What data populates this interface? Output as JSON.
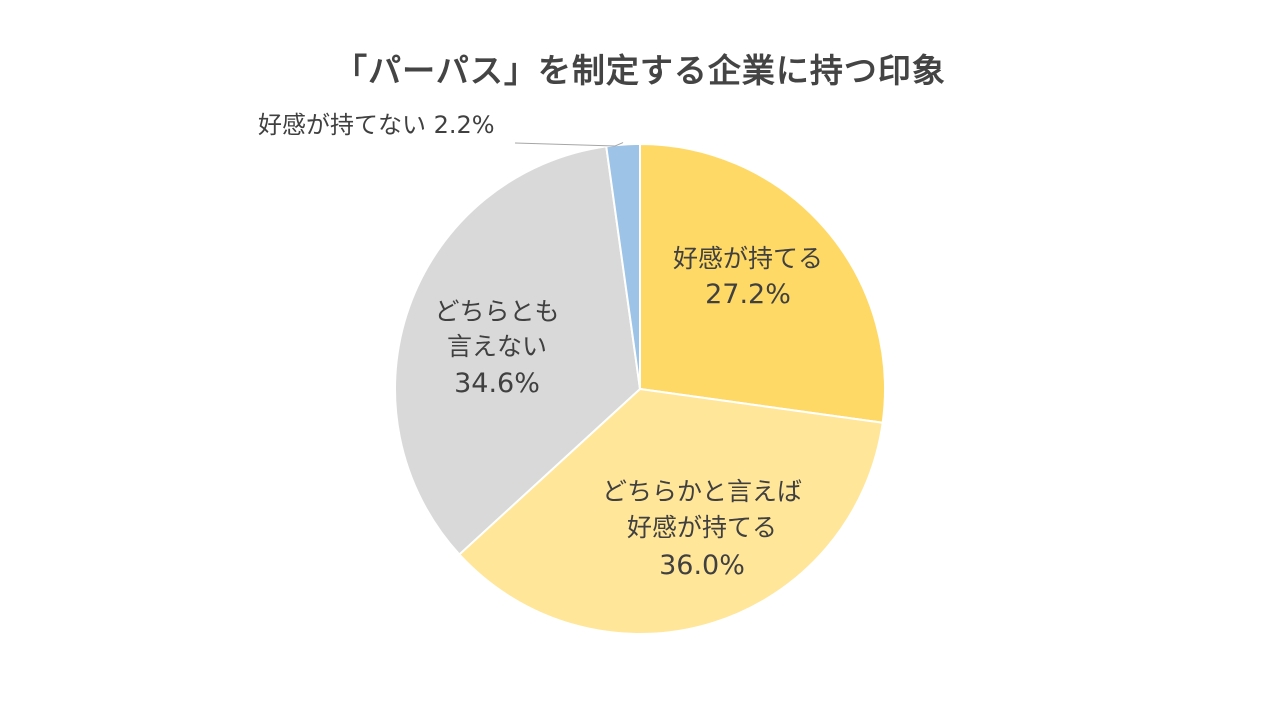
{
  "chart_data": {
    "type": "pie",
    "title": "「パーパス」を制定する企業に持つ印象",
    "start_angle_deg": 0,
    "direction": "clockwise",
    "slices": [
      {
        "name": "好感が持てる",
        "label_lines": [
          "好感が持てる"
        ],
        "value": 27.2,
        "value_text": "27.2%",
        "color": "#FFD966",
        "label_position": "inside"
      },
      {
        "name": "どちらかと言えば好感が持てる",
        "label_lines": [
          "どちらかと言えば",
          "好感が持てる"
        ],
        "value": 36.0,
        "value_text": "36.0%",
        "color": "#FFE699",
        "label_position": "inside"
      },
      {
        "name": "どちらとも言えない",
        "label_lines": [
          "どちらとも",
          "言えない"
        ],
        "value": 34.6,
        "value_text": "34.6%",
        "color": "#D9D9D9",
        "label_position": "inside"
      },
      {
        "name": "好感が持てない",
        "label_lines": [
          "好感が持てない 2.2%"
        ],
        "value": 2.2,
        "value_text": "",
        "color": "#9DC3E6",
        "label_position": "outside-top-left"
      }
    ]
  }
}
